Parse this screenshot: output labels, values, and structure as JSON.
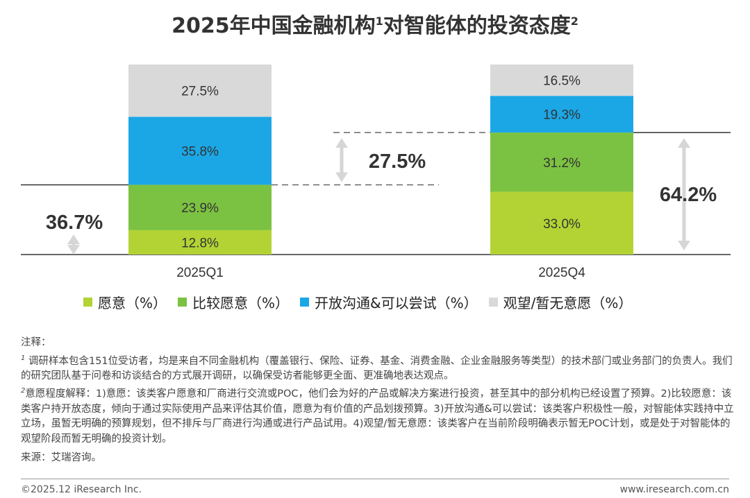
{
  "header": {
    "title_main": "2025年中国金融机构",
    "title_sup1": "1",
    "title_mid": "对智能体的投资态度",
    "title_sup2": "2"
  },
  "chart_data": {
    "type": "stacked-bar",
    "title": "2025年中国金融机构对智能体的投资态度",
    "categories": [
      "2025Q1",
      "2025Q4"
    ],
    "unit": "%",
    "series": [
      {
        "name": "愿意（%）",
        "color": "#b3d334",
        "values": [
          12.8,
          33.0
        ],
        "labels": [
          "12.8%",
          "33.0%"
        ]
      },
      {
        "name": "比较愿意（%）",
        "color": "#7cc242",
        "values": [
          23.9,
          31.2
        ],
        "labels": [
          "23.9%",
          "31.2%"
        ]
      },
      {
        "name": "开放沟通&可以尝试（%）",
        "color": "#1ba7e6",
        "values": [
          35.8,
          19.3
        ],
        "labels": [
          "35.8%",
          "19.3%"
        ]
      },
      {
        "name": "观望/暂无意愿（%）",
        "color": "#d9d9d9",
        "values": [
          27.5,
          16.5
        ],
        "labels": [
          "27.5%",
          "16.5%"
        ]
      }
    ],
    "annotations": {
      "q1_willing_total": "36.7%",
      "change": "27.5%",
      "q4_willing_total": "64.2%"
    },
    "ylim": [
      0,
      100
    ]
  },
  "notes": {
    "heading": "注释：",
    "note1_sup": "1",
    "note1": "调研样本包含151位受访者，均是来自不同金融机构（覆盖银行、保险、证券、基金、消费金融、企业金融服务等类型）的技术部门或业务部门的负责人。我们的研究团队基于问卷和访谈结合的方式展开调研，以确保受访者能够更全面、更准确地表达观点。",
    "note2_sup": "2",
    "note2": "意愿程度解释：1)意愿：该类客户愿意和厂商进行交流或POC，他们会为好的产品或解决方案进行投资，甚至其中的部分机构已经设置了预算。2)比较愿意：该类客户持开放态度，倾向于通过实际使用产品来评估其价值，愿意为有价值的产品划拨预算。3)开放沟通&可以尝试：该类客户积极性一般，对智能体实践持中立立场，虽暂无明确的预算规划，但不排斥与厂商进行沟通或进行产品试用。4)观望/暂无意愿：该类客户在当前阶段明确表示暂无POC计划，或是处于对智能体的观望阶段而暂无明确的投资计划。",
    "source": "来源：艾瑞咨询。"
  },
  "footer": {
    "copyright": "©2025.12 iResearch Inc.",
    "website": "www.iresearch.com.cn"
  }
}
